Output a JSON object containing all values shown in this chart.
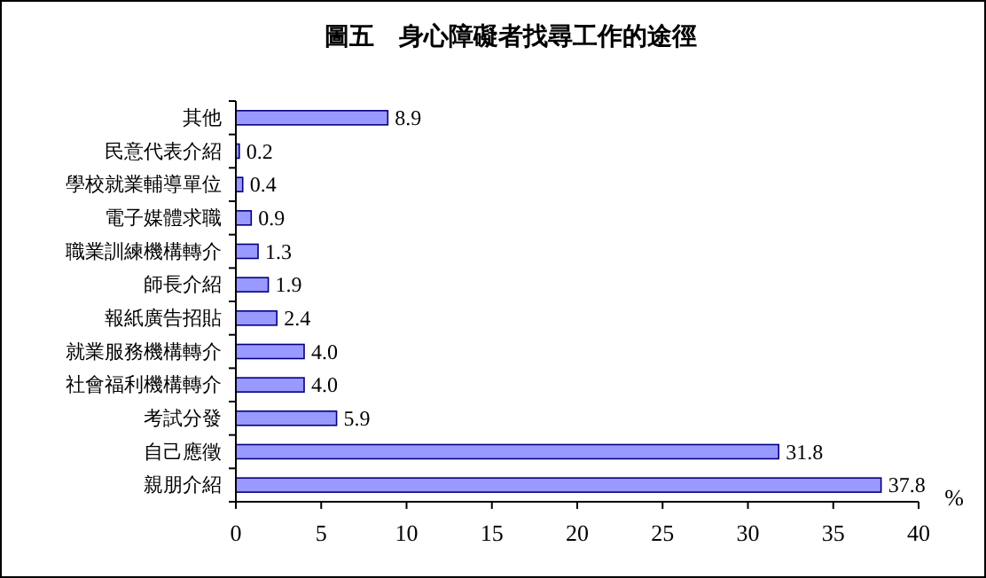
{
  "chart_data": {
    "type": "bar",
    "orientation": "horizontal",
    "title": "圖五　身心障礙者找尋工作的途徑",
    "xlabel": "%",
    "categories": [
      "其他",
      "民意代表介紹",
      "學校就業輔導單位",
      "電子媒體求職",
      "職業訓練機構轉介",
      "師長介紹",
      "報紙廣告招貼",
      "就業服務機構轉介",
      "社會福利機構轉介",
      "考試分發",
      "自己應徵",
      "親朋介紹"
    ],
    "values": [
      8.9,
      0.2,
      0.4,
      0.9,
      1.3,
      1.9,
      2.4,
      4.0,
      4.0,
      5.9,
      31.8,
      37.8
    ],
    "value_labels": [
      "8.9",
      "0.2",
      "0.4",
      "0.9",
      "1.3",
      "1.9",
      "2.4",
      "4.0",
      "4.0",
      "5.9",
      "31.8",
      "37.8"
    ],
    "color": "#9999ff",
    "xlim": [
      0,
      40
    ],
    "xticks": [
      0,
      5,
      10,
      15,
      20,
      25,
      30,
      35,
      40
    ],
    "grid": false
  }
}
